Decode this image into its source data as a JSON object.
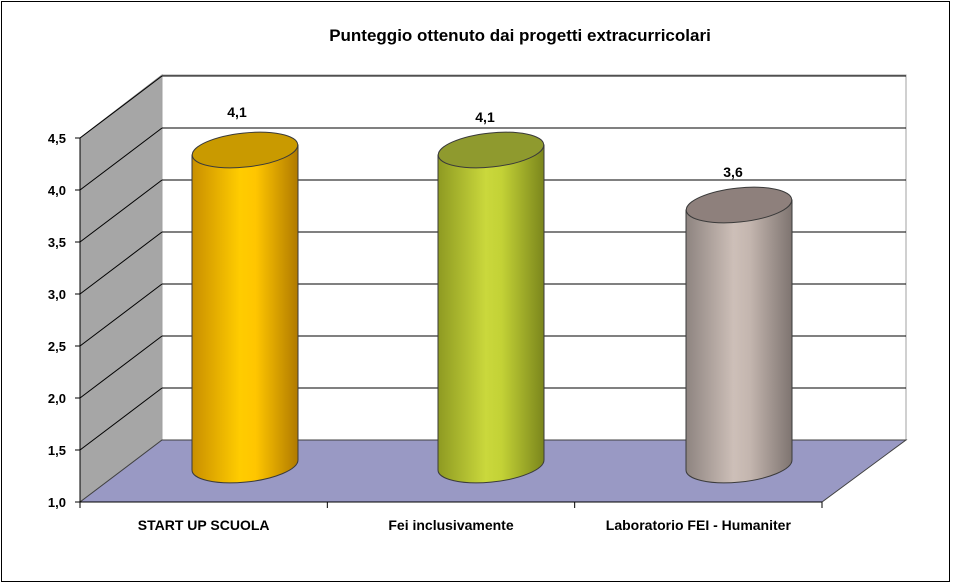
{
  "chart_data": {
    "type": "bar",
    "subtype": "3d-cylinder",
    "title": "Punteggio ottenuto dai progetti extracurricolari",
    "xlabel": "",
    "ylabel": "",
    "categories": [
      "START UP SCUOLA",
      "Fei inclusivamente",
      "Laboratorio FEI - Humaniter"
    ],
    "values": [
      4.1,
      4.1,
      3.6
    ],
    "data_labels": [
      "4,1",
      "4,1",
      "3,6"
    ],
    "colors": [
      "#FFC000",
      "#C5D53A",
      "#C4B5AE"
    ],
    "ylim": [
      1.0,
      4.5
    ],
    "y_ticks": [
      "1,0",
      "1,5",
      "2,0",
      "2,5",
      "3,0",
      "3,5",
      "4,0",
      "4,5"
    ],
    "grid": true,
    "legend": "none",
    "wall_color": "#A6A6A6",
    "floor_color": "#9999C4"
  }
}
